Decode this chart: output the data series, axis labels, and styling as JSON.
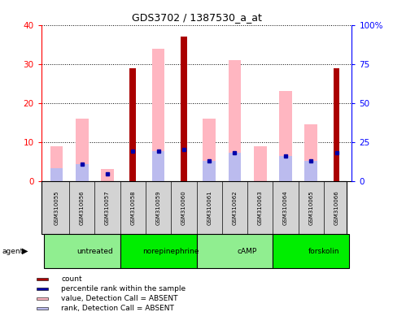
{
  "title": "GDS3702 / 1387530_a_at",
  "samples": [
    "GSM310055",
    "GSM310056",
    "GSM310057",
    "GSM310058",
    "GSM310059",
    "GSM310060",
    "GSM310061",
    "GSM310062",
    "GSM310063",
    "GSM310064",
    "GSM310065",
    "GSM310066"
  ],
  "count_values": [
    0,
    0,
    0,
    29.0,
    0,
    37.0,
    0,
    0,
    0,
    0,
    0,
    29.0
  ],
  "percentile_values": [
    0,
    11.0,
    4.5,
    19.0,
    19.0,
    20.0,
    13.0,
    18.0,
    0,
    16.0,
    13.0,
    18.0
  ],
  "value_absent": [
    9.0,
    16.0,
    3.0,
    0,
    34.0,
    0,
    16.0,
    31.0,
    9.0,
    23.0,
    14.5,
    0
  ],
  "rank_absent": [
    8.0,
    11.0,
    0,
    0,
    19.0,
    0,
    13.0,
    18.0,
    0,
    16.0,
    13.0,
    0
  ],
  "groups": [
    {
      "label": "untreated",
      "start": 0,
      "end": 3,
      "color": "#90EE90"
    },
    {
      "label": "norepinephrine",
      "start": 3,
      "end": 6,
      "color": "#00EE00"
    },
    {
      "label": "cAMP",
      "start": 6,
      "end": 9,
      "color": "#90EE90"
    },
    {
      "label": "forskolin",
      "start": 9,
      "end": 12,
      "color": "#00EE00"
    }
  ],
  "ylim_left": [
    0,
    40
  ],
  "ylim_right": [
    0,
    100
  ],
  "yticks_left": [
    0,
    10,
    20,
    30,
    40
  ],
  "yticks_right": [
    0,
    25,
    50,
    75,
    100
  ],
  "ytick_labels_right": [
    "0",
    "25",
    "50",
    "75",
    "100%"
  ],
  "color_count": "#AA0000",
  "color_percentile": "#0000AA",
  "color_value_absent": "#FFB6C1",
  "color_rank_absent": "#BBBBEE",
  "legend_labels": [
    "count",
    "percentile rank within the sample",
    "value, Detection Call = ABSENT",
    "rank, Detection Call = ABSENT"
  ]
}
